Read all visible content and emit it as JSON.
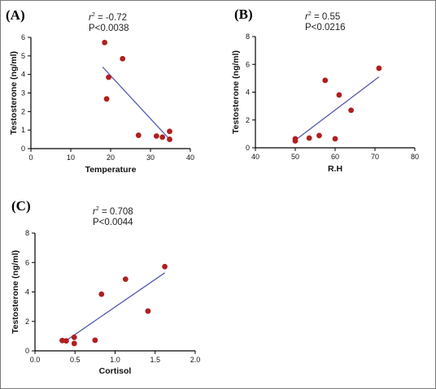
{
  "chart_data": [
    {
      "type": "scatter",
      "panel_label": "(A)",
      "stat_r2": "-0.72",
      "stat_p": "P<0.0038",
      "xlabel": "Temperature",
      "ylabel": "Testosterone (ng/ml)",
      "xlim": [
        0,
        40
      ],
      "ylim": [
        0,
        6
      ],
      "xticks": [
        0,
        10,
        20,
        30,
        40
      ],
      "xtick_labels": [
        "0",
        "10",
        "20",
        "30",
        "40"
      ],
      "yticks": [
        0,
        1,
        2,
        3,
        4,
        5,
        6
      ],
      "ytick_labels": [
        "0",
        "1",
        "2",
        "3",
        "4",
        "5",
        "6"
      ],
      "points": [
        {
          "x": 18.5,
          "y": 5.72
        },
        {
          "x": 23.0,
          "y": 4.85
        },
        {
          "x": 19.5,
          "y": 3.85
        },
        {
          "x": 19.0,
          "y": 2.68
        },
        {
          "x": 27.0,
          "y": 0.72
        },
        {
          "x": 31.5,
          "y": 0.68
        },
        {
          "x": 33.0,
          "y": 0.62
        },
        {
          "x": 34.8,
          "y": 0.93
        },
        {
          "x": 34.8,
          "y": 0.5
        }
      ],
      "fit_line": [
        {
          "x": 18.0,
          "y": 4.4
        },
        {
          "x": 35.0,
          "y": 0.45
        }
      ],
      "marker_color": "#b01f1f",
      "line_color": "#5358b4"
    },
    {
      "type": "scatter",
      "panel_label": "(B)",
      "stat_r2": "0.55",
      "stat_p": "P<0.0216",
      "xlabel": "R.H",
      "ylabel": "Testosterone (ng/ml)",
      "xlim": [
        40,
        80
      ],
      "ylim": [
        0,
        8
      ],
      "xticks": [
        40,
        50,
        60,
        70,
        80
      ],
      "xtick_labels": [
        "40",
        "50",
        "60",
        "70",
        "80"
      ],
      "yticks": [
        0,
        2,
        4,
        6,
        8
      ],
      "ytick_labels": [
        "0",
        "2",
        "4",
        "6",
        "8"
      ],
      "points": [
        {
          "x": 50.0,
          "y": 0.65
        },
        {
          "x": 50.0,
          "y": 0.5
        },
        {
          "x": 53.5,
          "y": 0.7
        },
        {
          "x": 56.0,
          "y": 0.88
        },
        {
          "x": 57.5,
          "y": 4.85
        },
        {
          "x": 60.0,
          "y": 0.65
        },
        {
          "x": 61.0,
          "y": 3.8
        },
        {
          "x": 64.0,
          "y": 2.7
        },
        {
          "x": 71.0,
          "y": 5.72
        }
      ],
      "fit_line": [
        {
          "x": 50.0,
          "y": 0.55
        },
        {
          "x": 71.0,
          "y": 5.1
        }
      ],
      "marker_color": "#b01f1f",
      "line_color": "#5358b4"
    },
    {
      "type": "scatter",
      "panel_label": "(C)",
      "stat_r2": "0.708",
      "stat_p": "P<0.0044",
      "xlabel": "Cortisol",
      "ylabel": "Testosterone (ng/ml)",
      "xlim": [
        0,
        2
      ],
      "ylim": [
        0,
        8
      ],
      "xticks": [
        0,
        0.5,
        1,
        1.5,
        2
      ],
      "xtick_labels": [
        "0.0",
        "0.5",
        "1.0",
        "1.5",
        "2.0"
      ],
      "yticks": [
        0,
        2,
        4,
        6,
        8
      ],
      "ytick_labels": [
        "0",
        "2",
        "4",
        "6",
        "8"
      ],
      "points": [
        {
          "x": 0.34,
          "y": 0.7
        },
        {
          "x": 0.39,
          "y": 0.68
        },
        {
          "x": 0.49,
          "y": 0.92
        },
        {
          "x": 0.49,
          "y": 0.5
        },
        {
          "x": 0.75,
          "y": 0.72
        },
        {
          "x": 0.83,
          "y": 3.85
        },
        {
          "x": 1.13,
          "y": 4.87
        },
        {
          "x": 1.41,
          "y": 2.7
        },
        {
          "x": 1.62,
          "y": 5.72
        }
      ],
      "fit_line": [
        {
          "x": 0.35,
          "y": 0.55
        },
        {
          "x": 1.62,
          "y": 5.3
        }
      ],
      "marker_color": "#b01f1f",
      "line_color": "#5358b4"
    }
  ]
}
